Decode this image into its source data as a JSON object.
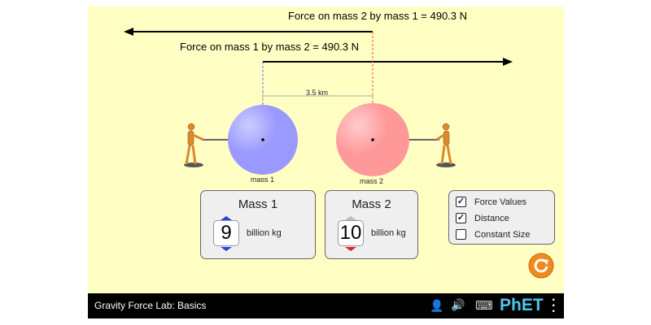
{
  "forces": {
    "force_on_2": "Force on mass 2 by mass 1 = 490.3 N",
    "force_on_1": "Force on mass 1 by mass 2 = 490.3 N"
  },
  "distance": "3.5 km",
  "masses": [
    {
      "label": "mass 1",
      "panel_title": "Mass 1",
      "value": "9",
      "unit": "billion kg",
      "color": "#9999ff"
    },
    {
      "label": "mass 2",
      "panel_title": "Mass 2",
      "value": "10",
      "unit": "billion kg",
      "color": "#ff9999"
    }
  ],
  "options": [
    {
      "label": "Force Values",
      "checked": true
    },
    {
      "label": "Distance",
      "checked": true
    },
    {
      "label": "Constant Size",
      "checked": false
    }
  ],
  "navbar": {
    "title": "Gravity Force Lab: Basics",
    "brand": "PhET"
  }
}
